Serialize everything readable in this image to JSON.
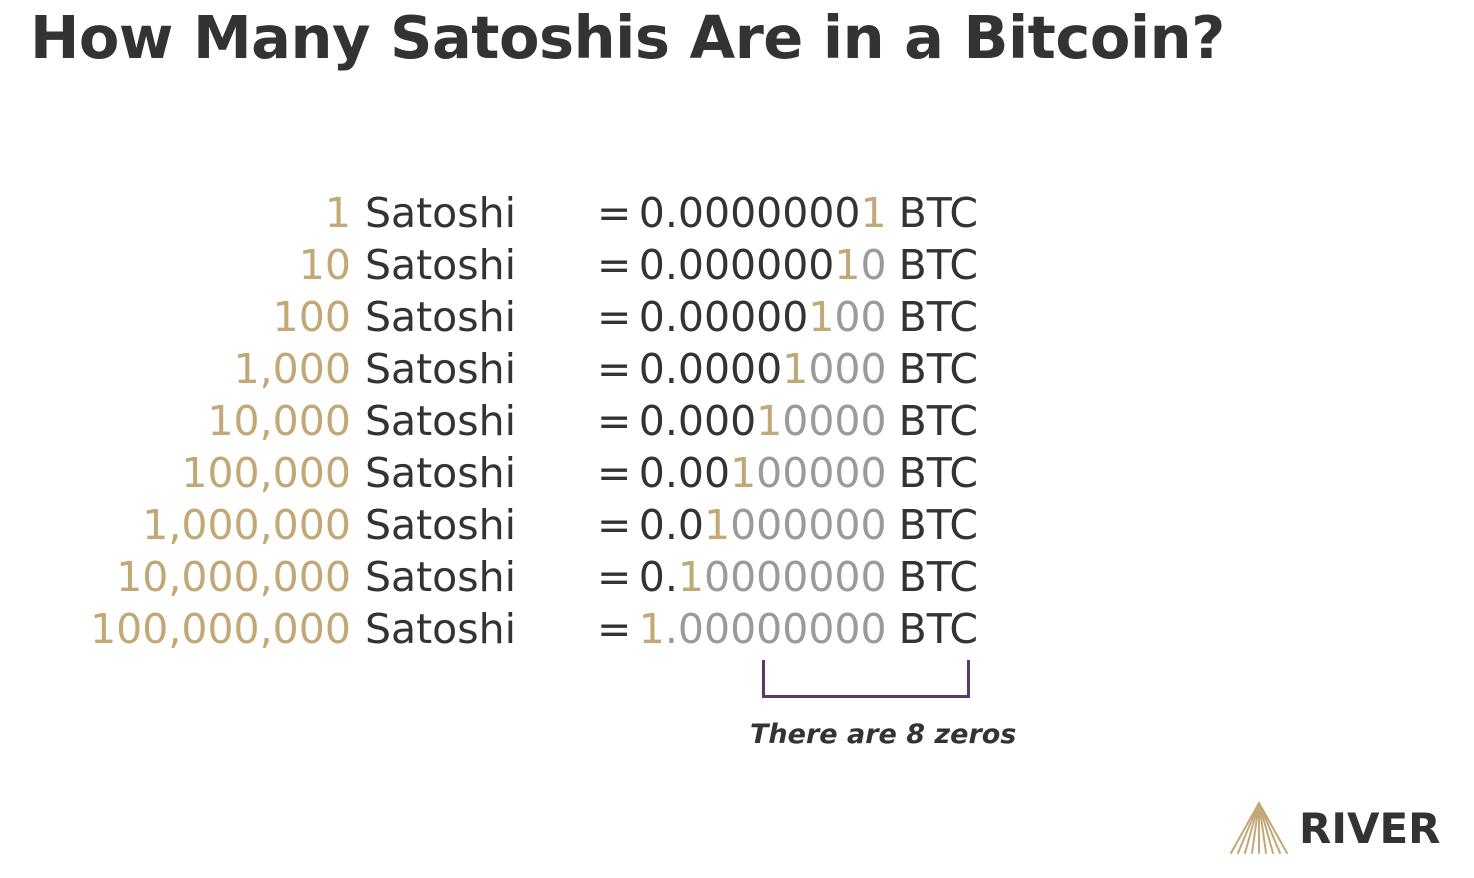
{
  "title": "How Many Satoshis Are in a Bitcoin?",
  "rows": [
    {
      "sats": "1",
      "unit": "Satoshi",
      "eq": "=",
      "btc_dark": "0.0000000",
      "btc_gold": "1",
      "btc_grey": "",
      "btc_unit": "BTC"
    },
    {
      "sats": "10",
      "unit": "Satoshi",
      "eq": "=",
      "btc_dark": "0.000000",
      "btc_gold": "1",
      "btc_grey": "0",
      "btc_unit": "BTC"
    },
    {
      "sats": "100",
      "unit": "Satoshi",
      "eq": "=",
      "btc_dark": "0.00000",
      "btc_gold": "1",
      "btc_grey": "00",
      "btc_unit": "BTC"
    },
    {
      "sats": "1,000",
      "unit": "Satoshi",
      "eq": "=",
      "btc_dark": "0.0000",
      "btc_gold": "1",
      "btc_grey": "000",
      "btc_unit": "BTC"
    },
    {
      "sats": "10,000",
      "unit": "Satoshi",
      "eq": "=",
      "btc_dark": "0.000",
      "btc_gold": "1",
      "btc_grey": "0000",
      "btc_unit": "BTC"
    },
    {
      "sats": "100,000",
      "unit": "Satoshi",
      "eq": "=",
      "btc_dark": "0.00",
      "btc_gold": "1",
      "btc_grey": "00000",
      "btc_unit": "BTC"
    },
    {
      "sats": "1,000,000",
      "unit": "Satoshi",
      "eq": "=",
      "btc_dark": "0.0",
      "btc_gold": "1",
      "btc_grey": "000000",
      "btc_unit": "BTC"
    },
    {
      "sats": "10,000,000",
      "unit": "Satoshi",
      "eq": "=",
      "btc_dark": "0.",
      "btc_gold": "1",
      "btc_grey": "0000000",
      "btc_unit": "BTC"
    },
    {
      "sats": "100,000,000",
      "unit": "Satoshi",
      "eq": "=",
      "btc_dark": "",
      "btc_gold": "1",
      "btc_grey": ".00000000",
      "btc_unit": "BTC"
    }
  ],
  "note": "There are 8 zeros",
  "logo": {
    "text": "RIVER",
    "icon": "river-mountain-icon"
  },
  "colors": {
    "gold": "#c2a877",
    "dark": "#333333",
    "grey": "#9a9a9a",
    "bracket": "#5a3a66"
  }
}
